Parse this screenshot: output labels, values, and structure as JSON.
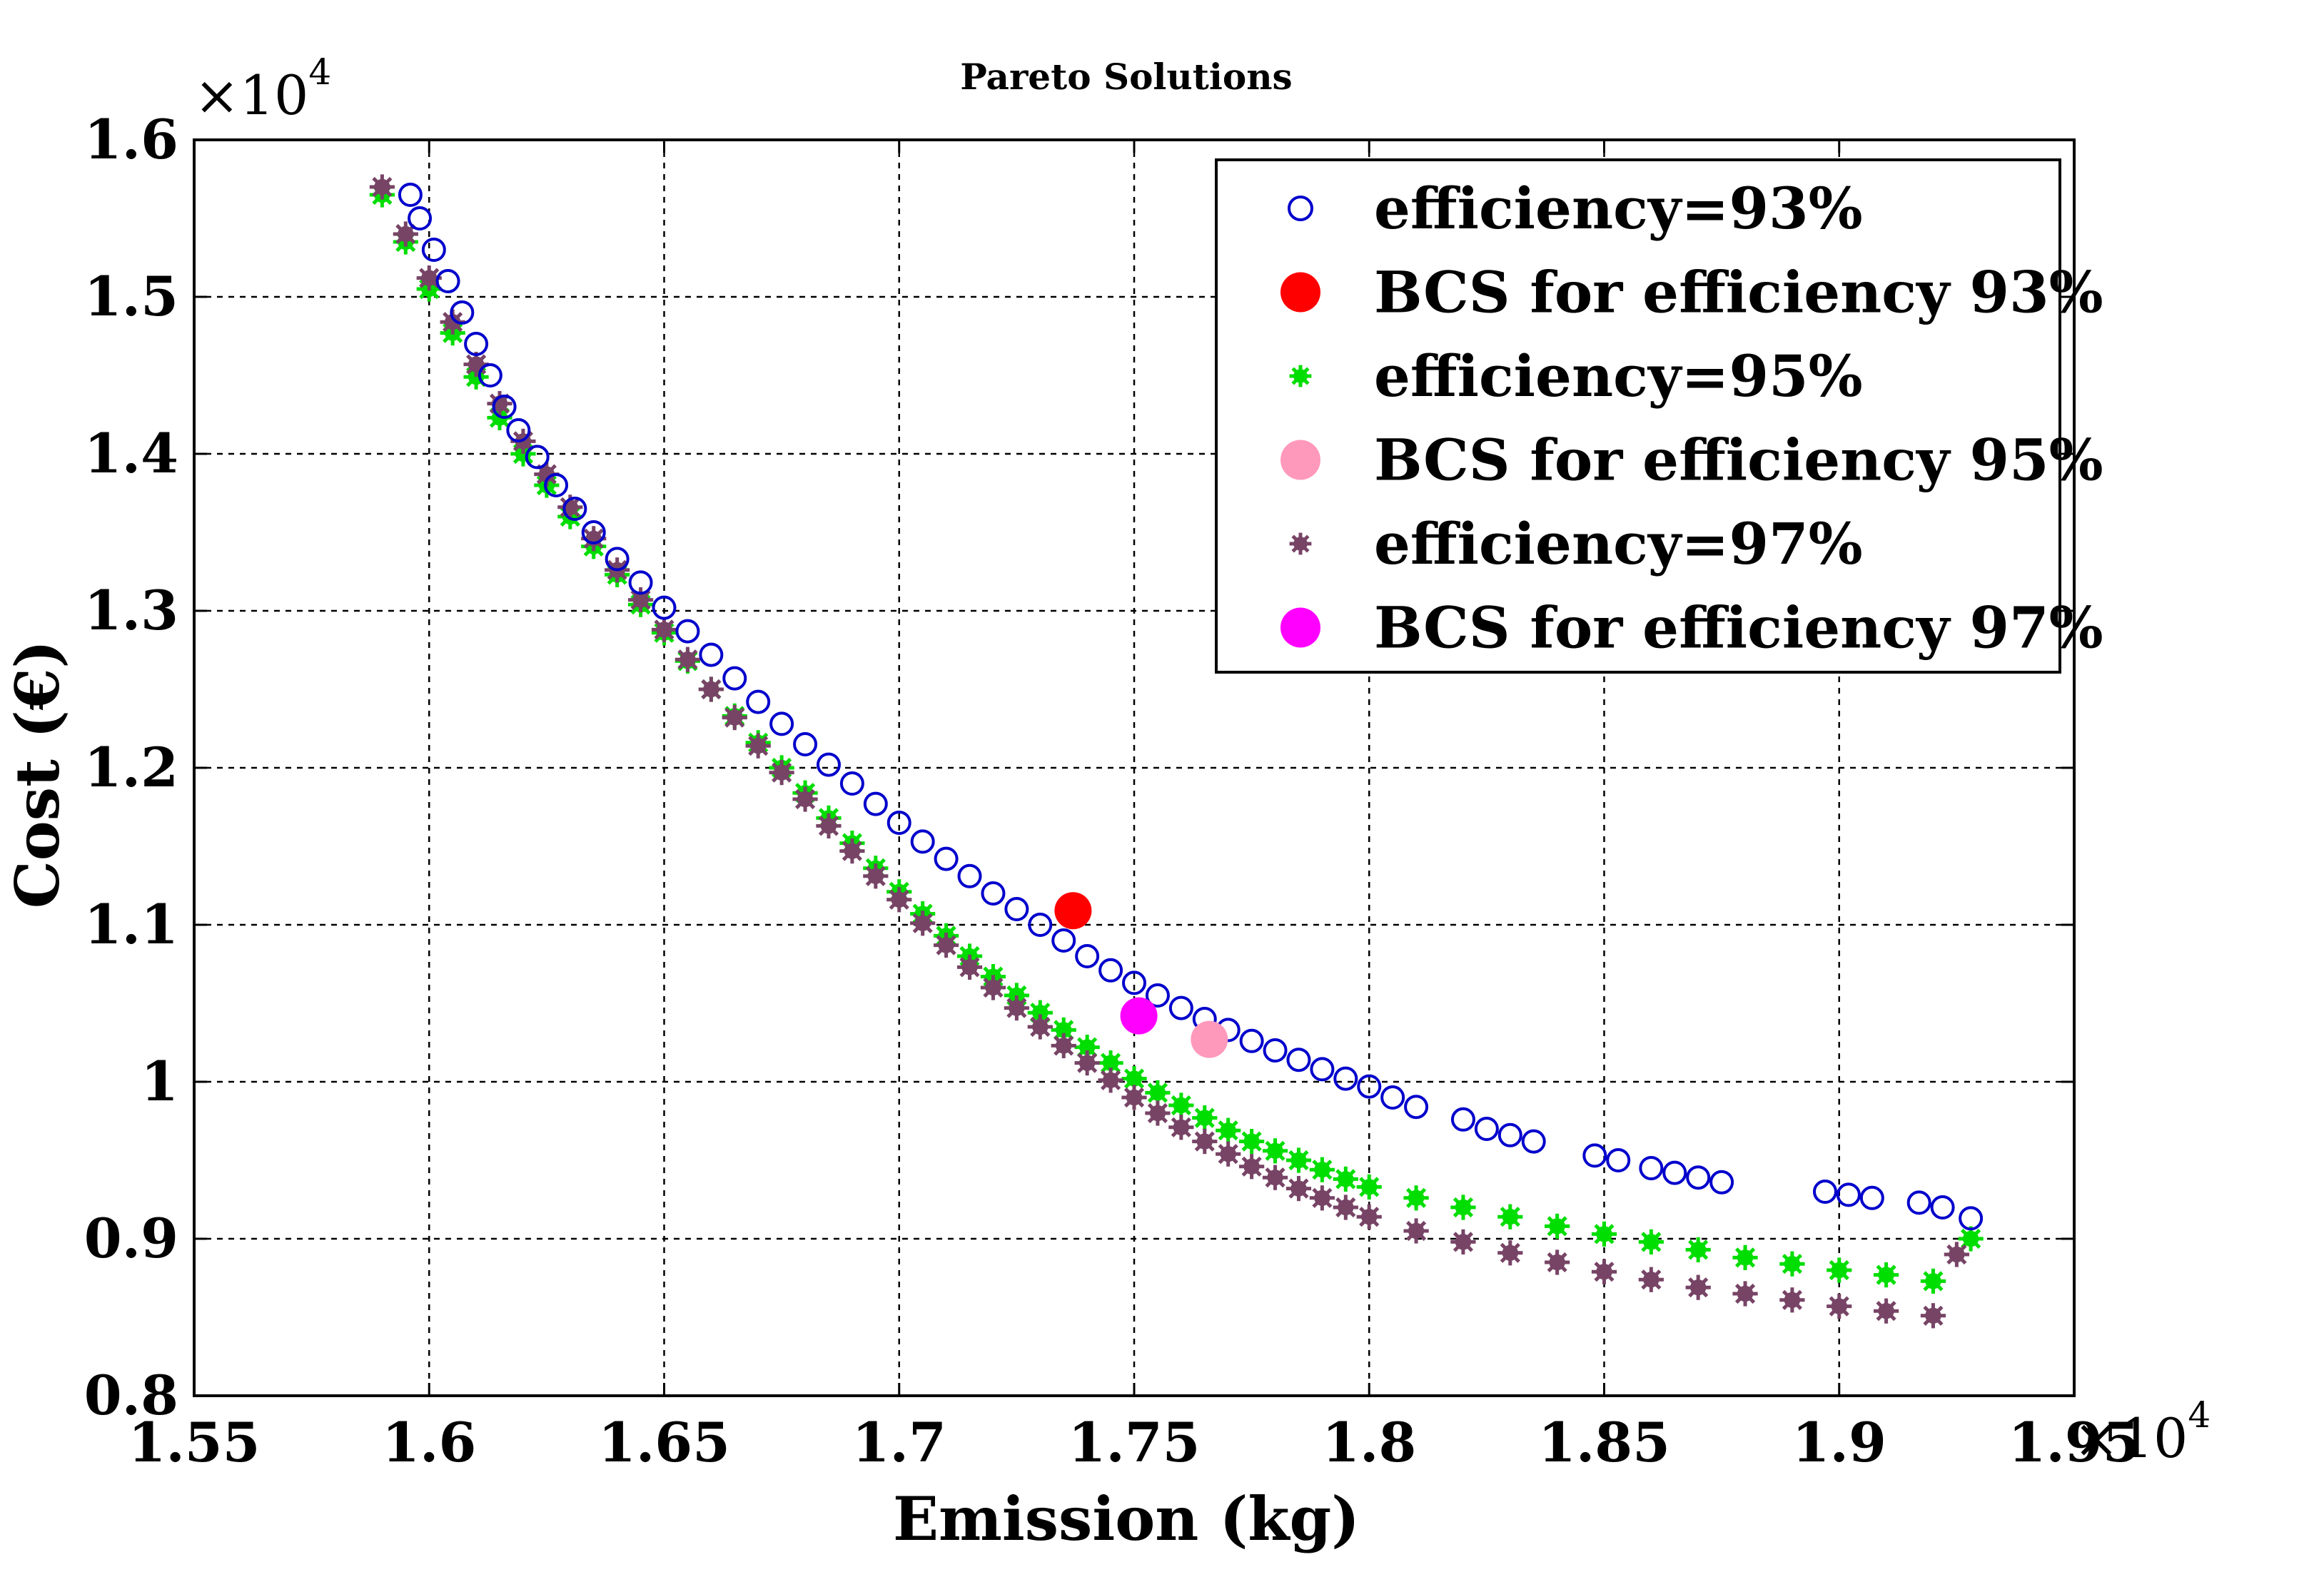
{
  "chart_data": {
    "type": "scatter",
    "title": "Pareto Solutions",
    "xlabel": "Emission (kg)",
    "ylabel": "Cost (€)",
    "x_multiplier": "×10",
    "x_multiplier_exp": "4",
    "y_multiplier": "×10",
    "y_multiplier_exp": "4",
    "xlim": [
      1.55,
      1.95
    ],
    "ylim": [
      0.8,
      1.6
    ],
    "xticks": [
      1.55,
      1.6,
      1.65,
      1.7,
      1.75,
      1.8,
      1.85,
      1.9,
      1.95
    ],
    "xtick_labels": [
      "1.55",
      "1.6",
      "1.65",
      "1.7",
      "1.75",
      "1.8",
      "1.85",
      "1.9",
      "1.95"
    ],
    "yticks": [
      0.8,
      0.9,
      1.0,
      1.1,
      1.2,
      1.3,
      1.4,
      1.5,
      1.6
    ],
    "ytick_labels": [
      "0.8",
      "0.9",
      "1",
      "1.1",
      "1.2",
      "1.3",
      "1.4",
      "1.5",
      "1.6"
    ],
    "grid": true,
    "legend_position": "top-right",
    "series": [
      {
        "name": "efficiency=93%",
        "marker": "circle-open",
        "color": "#0000cc",
        "x": [
          1.596,
          1.598,
          1.601,
          1.604,
          1.607,
          1.61,
          1.613,
          1.616,
          1.619,
          1.623,
          1.627,
          1.631,
          1.635,
          1.64,
          1.645,
          1.65,
          1.655,
          1.66,
          1.665,
          1.67,
          1.675,
          1.68,
          1.685,
          1.69,
          1.695,
          1.7,
          1.705,
          1.71,
          1.715,
          1.72,
          1.725,
          1.73,
          1.735,
          1.74,
          1.745,
          1.75,
          1.755,
          1.76,
          1.765,
          1.77,
          1.775,
          1.78,
          1.785,
          1.79,
          1.795,
          1.8,
          1.805,
          1.81,
          1.82,
          1.825,
          1.83,
          1.835,
          1.848,
          1.853,
          1.86,
          1.865,
          1.87,
          1.875,
          1.897,
          1.902,
          1.907,
          1.917,
          1.922,
          1.928
        ],
        "y": [
          1.565,
          1.55,
          1.53,
          1.51,
          1.49,
          1.47,
          1.45,
          1.43,
          1.415,
          1.398,
          1.38,
          1.365,
          1.35,
          1.333,
          1.318,
          1.302,
          1.287,
          1.272,
          1.257,
          1.242,
          1.228,
          1.215,
          1.202,
          1.19,
          1.177,
          1.165,
          1.153,
          1.142,
          1.131,
          1.12,
          1.11,
          1.1,
          1.09,
          1.08,
          1.071,
          1.063,
          1.055,
          1.047,
          1.04,
          1.033,
          1.026,
          1.02,
          1.014,
          1.008,
          1.002,
          0.997,
          0.99,
          0.984,
          0.976,
          0.97,
          0.966,
          0.962,
          0.953,
          0.95,
          0.945,
          0.942,
          0.939,
          0.936,
          0.93,
          0.928,
          0.926,
          0.923,
          0.92,
          0.913
        ]
      },
      {
        "name": "BCS for efficiency 93%",
        "marker": "circle-filled",
        "color": "#ff0000",
        "x": [
          1.737
        ],
        "y": [
          1.109
        ]
      },
      {
        "name": "efficiency=95%",
        "marker": "star",
        "color": "#00dd00",
        "x": [
          1.59,
          1.595,
          1.6,
          1.605,
          1.61,
          1.615,
          1.62,
          1.625,
          1.63,
          1.635,
          1.64,
          1.645,
          1.65,
          1.655,
          1.66,
          1.665,
          1.67,
          1.675,
          1.68,
          1.685,
          1.69,
          1.695,
          1.7,
          1.705,
          1.71,
          1.715,
          1.72,
          1.725,
          1.73,
          1.735,
          1.74,
          1.745,
          1.75,
          1.755,
          1.76,
          1.765,
          1.77,
          1.775,
          1.78,
          1.785,
          1.79,
          1.795,
          1.8,
          1.81,
          1.82,
          1.83,
          1.84,
          1.85,
          1.86,
          1.87,
          1.88,
          1.89,
          1.9,
          1.91,
          1.92,
          1.928
        ],
        "y": [
          1.565,
          1.535,
          1.505,
          1.477,
          1.449,
          1.423,
          1.4,
          1.38,
          1.36,
          1.341,
          1.323,
          1.304,
          1.286,
          1.268,
          1.25,
          1.233,
          1.216,
          1.2,
          1.184,
          1.168,
          1.152,
          1.136,
          1.121,
          1.107,
          1.093,
          1.08,
          1.067,
          1.055,
          1.044,
          1.033,
          1.022,
          1.012,
          1.002,
          0.993,
          0.985,
          0.977,
          0.969,
          0.962,
          0.956,
          0.95,
          0.944,
          0.938,
          0.933,
          0.926,
          0.92,
          0.914,
          0.908,
          0.903,
          0.898,
          0.893,
          0.888,
          0.884,
          0.88,
          0.877,
          0.873,
          0.9
        ]
      },
      {
        "name": "BCS for efficiency 95%",
        "marker": "circle-filled",
        "color": "#ff99bb",
        "x": [
          1.766
        ],
        "y": [
          1.027
        ]
      },
      {
        "name": "efficiency=97%",
        "marker": "star",
        "color": "#774466",
        "x": [
          1.59,
          1.595,
          1.6,
          1.605,
          1.61,
          1.615,
          1.62,
          1.625,
          1.63,
          1.635,
          1.64,
          1.645,
          1.65,
          1.655,
          1.66,
          1.665,
          1.67,
          1.675,
          1.68,
          1.685,
          1.69,
          1.695,
          1.7,
          1.705,
          1.71,
          1.715,
          1.72,
          1.725,
          1.73,
          1.735,
          1.74,
          1.745,
          1.75,
          1.755,
          1.76,
          1.765,
          1.77,
          1.775,
          1.78,
          1.785,
          1.79,
          1.795,
          1.8,
          1.81,
          1.82,
          1.83,
          1.84,
          1.85,
          1.86,
          1.87,
          1.88,
          1.89,
          1.9,
          1.91,
          1.92,
          1.925
        ],
        "y": [
          1.57,
          1.54,
          1.512,
          1.484,
          1.457,
          1.432,
          1.408,
          1.387,
          1.366,
          1.346,
          1.326,
          1.307,
          1.288,
          1.269,
          1.25,
          1.232,
          1.214,
          1.197,
          1.18,
          1.163,
          1.147,
          1.131,
          1.116,
          1.101,
          1.087,
          1.073,
          1.06,
          1.047,
          1.035,
          1.023,
          1.012,
          1.001,
          0.99,
          0.98,
          0.971,
          0.962,
          0.954,
          0.946,
          0.939,
          0.932,
          0.926,
          0.92,
          0.914,
          0.905,
          0.898,
          0.891,
          0.885,
          0.879,
          0.874,
          0.869,
          0.865,
          0.861,
          0.857,
          0.854,
          0.851,
          0.89
        ]
      },
      {
        "name": "BCS for efficiency 97%",
        "marker": "circle-filled",
        "color": "#ff00ff",
        "x": [
          1.751
        ],
        "y": [
          1.042
        ]
      }
    ]
  }
}
